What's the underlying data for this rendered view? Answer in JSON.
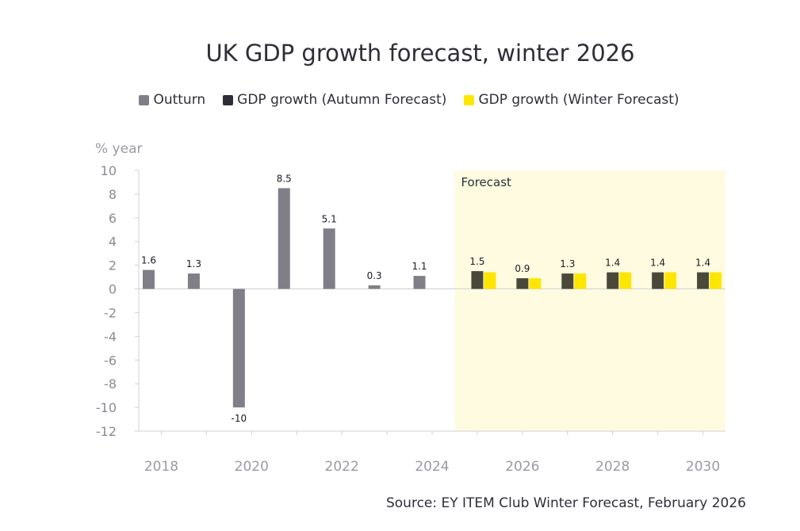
{
  "colors": {
    "outturn": "#807f88",
    "autumn": "#4a4838",
    "winter": "#ffe600",
    "forecast_bg": "#fefbe0",
    "axis": "#d0d0d6"
  },
  "legend": {
    "outturn": "Outturn",
    "autumn": "GDP growth (Autumn Forecast)",
    "winter": "GDP growth (Winter Forecast)"
  },
  "source": "Source: EY ITEM Club Winter Forecast, February 2026",
  "chart_data": {
    "type": "bar",
    "title": "UK GDP growth forecast, winter 2026",
    "ylabel": "% year",
    "xlabel": "",
    "ylim": [
      -12,
      10
    ],
    "yticks": [
      "10",
      "8",
      "6",
      "4",
      "2",
      "0",
      "-2",
      "-4",
      "-6",
      "-8",
      "-10",
      "-12"
    ],
    "categories": [
      "2018",
      "2019",
      "2020",
      "2021",
      "2022",
      "2023",
      "2024",
      "2025",
      "2026",
      "2027",
      "2028",
      "2029",
      "2030"
    ],
    "xtick_labels": [
      "2018",
      "2020",
      "2022",
      "2024",
      "2026",
      "2028",
      "2030"
    ],
    "forecast_label": "Forecast",
    "forecast_from": "2025",
    "series": [
      {
        "name": "Outturn",
        "values": [
          1.6,
          1.3,
          -10,
          8.5,
          5.1,
          0.3,
          1.1,
          null,
          null,
          null,
          null,
          null,
          null
        ],
        "labels": [
          "1.6",
          "1.3",
          "-10",
          "8.5",
          "5.1",
          "0.3",
          "1.1",
          null,
          null,
          null,
          null,
          null,
          null
        ]
      },
      {
        "name": "GDP growth (Autumn Forecast)",
        "values": [
          null,
          null,
          null,
          null,
          null,
          null,
          null,
          1.5,
          0.9,
          1.3,
          1.4,
          1.4,
          1.4
        ],
        "labels": [
          null,
          null,
          null,
          null,
          null,
          null,
          null,
          "1.5",
          "0.9",
          "1.3",
          "1.4",
          "1.4",
          "1.4"
        ]
      },
      {
        "name": "GDP growth (Winter Forecast)",
        "values": [
          null,
          null,
          null,
          null,
          null,
          null,
          null,
          1.4,
          0.9,
          1.3,
          1.4,
          1.4,
          1.4
        ]
      }
    ]
  }
}
